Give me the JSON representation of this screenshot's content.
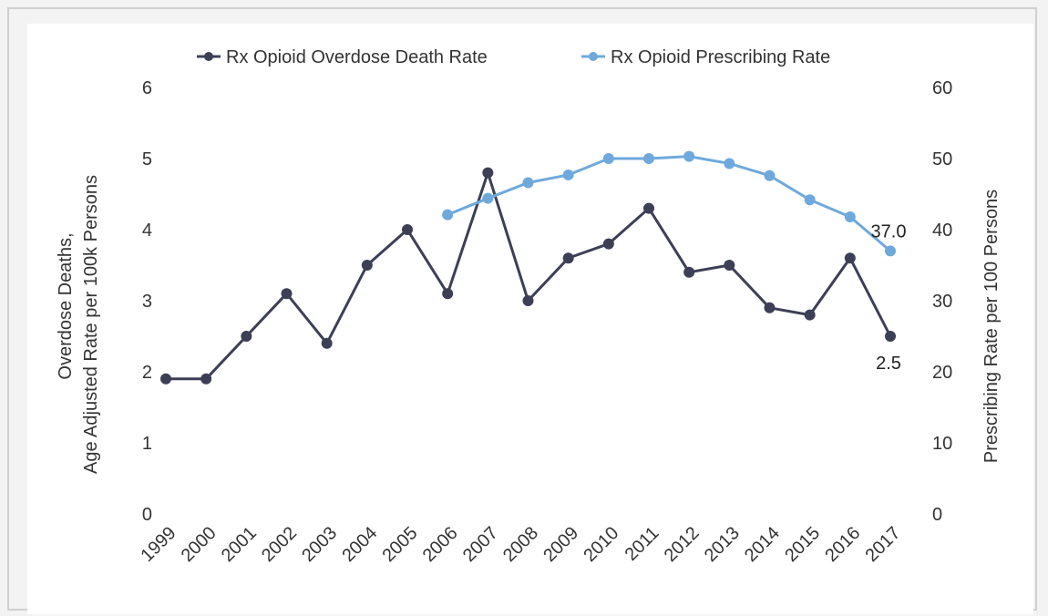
{
  "chart_data": {
    "type": "line",
    "title": "",
    "categories": [
      "1999",
      "2000",
      "2001",
      "2002",
      "2003",
      "2004",
      "2005",
      "2006",
      "2007",
      "2008",
      "2009",
      "2010",
      "2011",
      "2012",
      "2013",
      "2014",
      "2015",
      "2016",
      "2017"
    ],
    "y_left": {
      "label_line1": "Overdose Deaths,",
      "label_line2": "Age Adjusted Rate per 100k Persons",
      "ylim": [
        0,
        6
      ],
      "ticks": [
        0,
        1,
        2,
        3,
        4,
        5,
        6
      ]
    },
    "y_right": {
      "label": "Prescribing Rate per 100 Persons",
      "ylim": [
        0,
        60
      ],
      "ticks": [
        0,
        10,
        20,
        30,
        40,
        50,
        60
      ]
    },
    "grid": false,
    "legend_position": "top",
    "series": [
      {
        "name": "Rx Opioid Overdose Death Rate",
        "axis": "left",
        "color": "#3d3f56",
        "values": [
          1.9,
          1.9,
          2.5,
          3.1,
          2.4,
          3.5,
          4.0,
          3.1,
          4.8,
          3.0,
          3.6,
          3.8,
          4.3,
          3.4,
          3.5,
          2.9,
          2.8,
          3.6,
          2.5
        ],
        "end_label": "2.5"
      },
      {
        "name": "Rx Opioid Prescribing Rate",
        "axis": "right",
        "color": "#6fa9dc",
        "values": [
          null,
          null,
          null,
          null,
          null,
          null,
          null,
          42.1,
          44.4,
          46.6,
          47.7,
          50.0,
          50.0,
          50.3,
          49.3,
          47.6,
          44.2,
          41.8,
          37.0
        ],
        "end_label": "37.0"
      }
    ]
  }
}
